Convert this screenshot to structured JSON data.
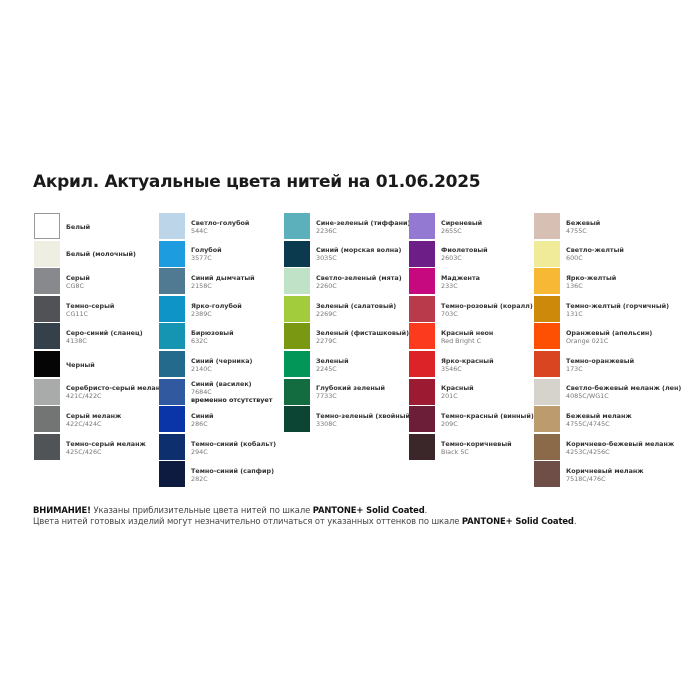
{
  "title": "Акрил. Актуальные цвета нитей на 01.06.2025",
  "columns": [
    [
      {
        "name": "Белый",
        "code": "",
        "color": "#ffffff",
        "border": true
      },
      {
        "name": "Белый (молочный)",
        "code": "",
        "color": "#eeeee2"
      },
      {
        "name": "Серый",
        "code": "CG8C",
        "color": "#88898c"
      },
      {
        "name": "Темно-серый",
        "code": "CG11C",
        "color": "#505256"
      },
      {
        "name": "Серо-синий (сланец)",
        "code": "4138C",
        "color": "#35414a"
      },
      {
        "name": "Черный",
        "code": "",
        "color": "#050505"
      },
      {
        "name": "Серебристо-серый меланж",
        "code": "421C/422C",
        "color": "#a9aaaa"
      },
      {
        "name": "Серый меланж",
        "code": "422C/424C",
        "color": "#737474"
      },
      {
        "name": "Темно-серый меланж",
        "code": "425C/426C",
        "color": "#505457"
      }
    ],
    [
      {
        "name": "Светло-голубой",
        "code": "544C",
        "color": "#bcd5e8"
      },
      {
        "name": "Голубой",
        "code": "3577C",
        "color": "#1e9ce0"
      },
      {
        "name": "Синий дымчатый",
        "code": "2158C",
        "color": "#4f7a92"
      },
      {
        "name": "Ярко-голубой",
        "code": "2389C",
        "color": "#0f94c8"
      },
      {
        "name": "Бирюзовый",
        "code": "632C",
        "color": "#1595b2"
      },
      {
        "name": "Синий (черника)",
        "code": "2140C",
        "color": "#236a8c"
      },
      {
        "name": "Синий (василек)",
        "code": "7684C",
        "note": "временно отсутствует",
        "color": "#3059a0"
      },
      {
        "name": "Синий",
        "code": "286C",
        "color": "#0a35a8"
      },
      {
        "name": "Темно-синий (кобальт)",
        "code": "294C",
        "color": "#0d2f6e"
      },
      {
        "name": "Темно-синий (сапфир)",
        "code": "282C",
        "color": "#0e1b40"
      }
    ],
    [
      {
        "name": "Сине-зеленый (тиффани)",
        "code": "2236C",
        "color": "#5bb0bc"
      },
      {
        "name": "Синий (морская волна)",
        "code": "3035C",
        "color": "#0b3a4e"
      },
      {
        "name": "Светло-зеленый (мята)",
        "code": "2260C",
        "color": "#c0e2c6"
      },
      {
        "name": "Зеленый (салатовый)",
        "code": "2269C",
        "color": "#a2cc3c"
      },
      {
        "name": "Зеленый (фисташковый)",
        "code": "2279C",
        "color": "#7a9812"
      },
      {
        "name": "Зеленый",
        "code": "2245C",
        "color": "#029758"
      },
      {
        "name": "Глубокий зеленый",
        "code": "7733C",
        "color": "#136b40"
      },
      {
        "name": "Темно-зеленый (хвойный)",
        "code": "3308C",
        "color": "#0c4533"
      }
    ],
    [
      {
        "name": "Сиреневый",
        "code": "2655C",
        "color": "#9479d2"
      },
      {
        "name": "Фиолетовый",
        "code": "2603C",
        "color": "#6e1e87"
      },
      {
        "name": "Маджента",
        "code": "233C",
        "color": "#c6097e"
      },
      {
        "name": "Темно-розовый (коралл)",
        "code": "703C",
        "color": "#b93a4a"
      },
      {
        "name": "Красный неон",
        "code": "Red Bright C",
        "color": "#fb3a1e"
      },
      {
        "name": "Ярко-красный",
        "code": "3546C",
        "color": "#dc2428"
      },
      {
        "name": "Красный",
        "code": "201C",
        "color": "#9c1b32"
      },
      {
        "name": "Темно-красный (винный)",
        "code": "209C",
        "color": "#6c1e38"
      },
      {
        "name": "Темно-коричневый",
        "code": "Black 5C",
        "color": "#3b2629"
      }
    ],
    [
      {
        "name": "Бежевый",
        "code": "4755C",
        "color": "#d8bfb4"
      },
      {
        "name": "Светло-желтый",
        "code": "600C",
        "color": "#f0eb98"
      },
      {
        "name": "Ярко-желтый",
        "code": "136C",
        "color": "#f7b935"
      },
      {
        "name": "Темно-желтый (горчичный)",
        "code": "131C",
        "color": "#cd8a0a"
      },
      {
        "name": "Оранжевый (апельсин)",
        "code": "Orange 021C",
        "color": "#fd5003"
      },
      {
        "name": "Темно-оранжевый",
        "code": "173C",
        "color": "#d84520"
      },
      {
        "name": "Светло-бежевый меланж (лен)",
        "code": "4085C/WG1C",
        "color": "#d6d2cc"
      },
      {
        "name": "Бежевый меланж",
        "code": "4755C/4745C",
        "color": "#bc9c6e"
      },
      {
        "name": "Коричнево-бежевый меланж",
        "code": "4253C/4256C",
        "color": "#8b6a4a"
      },
      {
        "name": "Коричневый меланж",
        "code": "7518C/476C",
        "color": "#6f4e48"
      }
    ]
  ],
  "footer": {
    "line1_bold": "ВНИМАНИЕ!",
    "line1_text": " Указаны приблизительные цвета нитей по шкале ",
    "line1_brand": "PANTONE+ Solid Coated",
    "line1_end": ".",
    "line2_text": "Цвета нитей готовых изделий могут незначительно отличаться от указанных оттенков по шкале ",
    "line2_brand": "PANTONE+ Solid Coated",
    "line2_end": "."
  }
}
